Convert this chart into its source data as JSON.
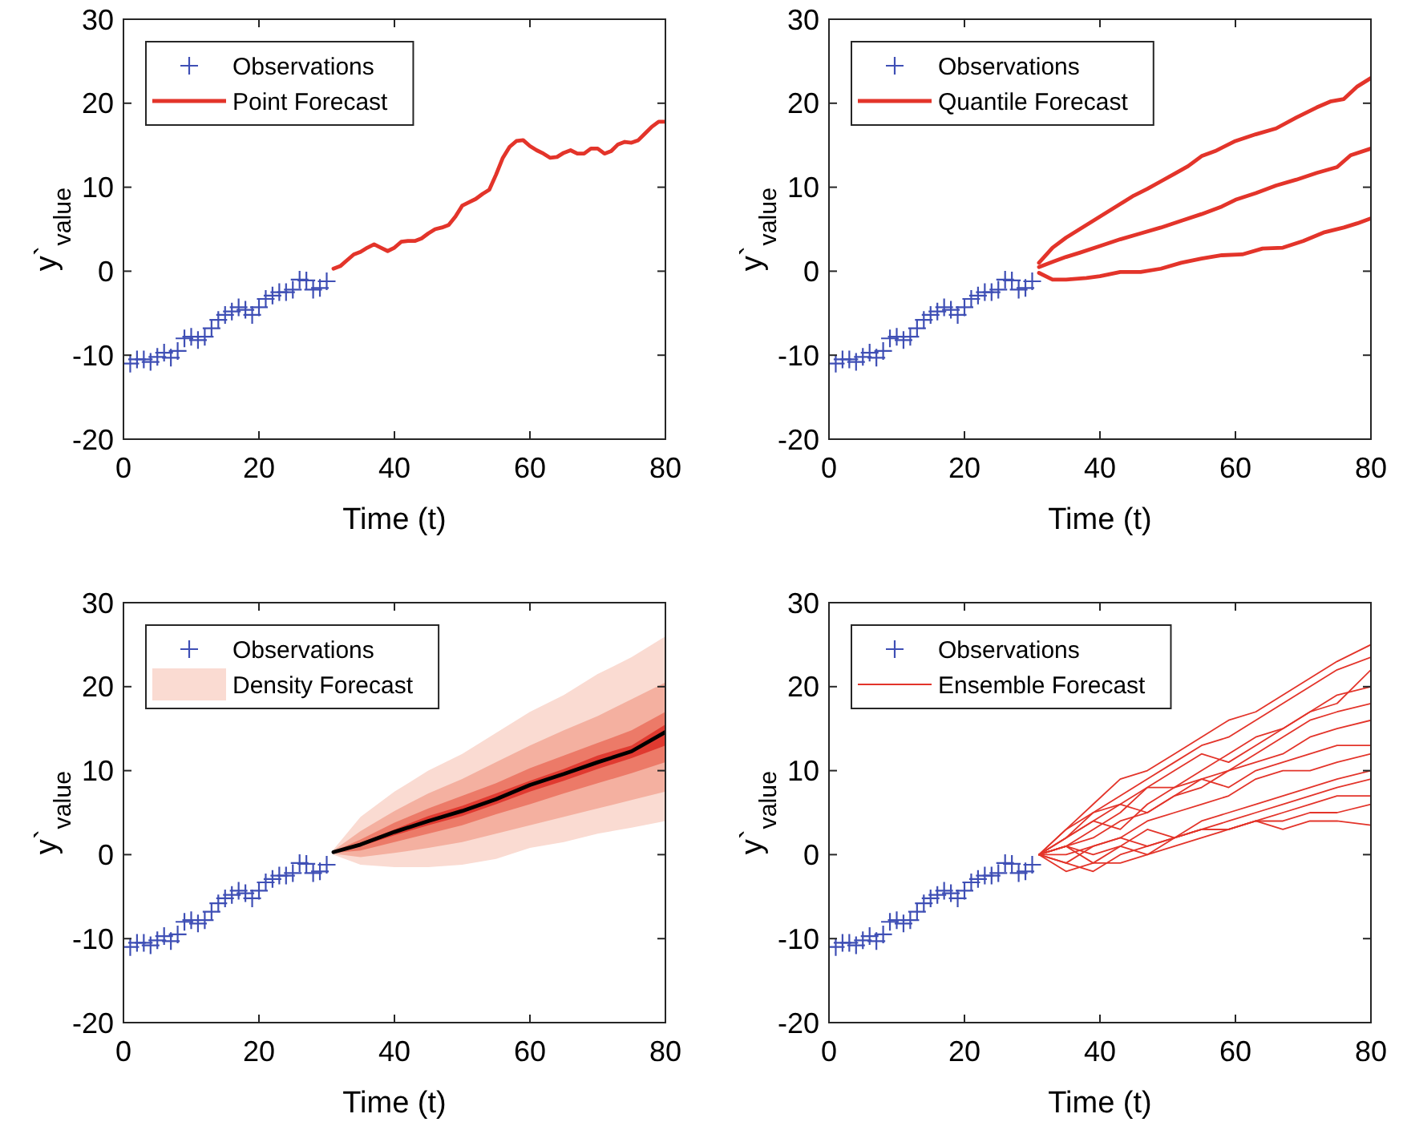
{
  "chart_data": [
    {
      "type": "scatter",
      "xlabel": "Time (t)",
      "ylabel": "y`$_{value}$",
      "xlim": [
        0,
        80
      ],
      "ylim": [
        -20,
        30
      ],
      "xticks": [
        0,
        20,
        40,
        60,
        80
      ],
      "yticks": [
        -20,
        -10,
        0,
        10,
        20,
        30
      ],
      "legend": "top left",
      "grid": false,
      "series": [
        {
          "name": "Observations",
          "marker": "cross",
          "color": "#3f4fb5",
          "x": [
            1,
            2,
            3,
            4,
            5,
            6,
            7,
            8,
            9,
            10,
            11,
            12,
            13,
            14,
            15,
            16,
            17,
            18,
            19,
            20,
            21,
            22,
            23,
            24,
            25,
            26,
            27,
            28,
            29,
            30
          ],
          "values": [
            -11,
            -10.5,
            -10.5,
            -10.8,
            -10.2,
            -9.7,
            -10.3,
            -9.5,
            -8,
            -7.8,
            -8.2,
            -7.8,
            -6.8,
            -5.8,
            -5.2,
            -4.8,
            -4.3,
            -4.6,
            -5.2,
            -4.3,
            -3.3,
            -2.9,
            -2.5,
            -2.5,
            -2.2,
            -1,
            -1.1,
            -2.2,
            -2,
            -1.2
          ]
        },
        {
          "name": "Point Forecast",
          "type": "line",
          "color": "#e3342a",
          "x": [
            31,
            32,
            33,
            34,
            35,
            36,
            37,
            38,
            39,
            40,
            41,
            42,
            43,
            44,
            45,
            46,
            47,
            48,
            49,
            50,
            51,
            52,
            53,
            54,
            55,
            56,
            57,
            58,
            59,
            60,
            61,
            62,
            63,
            64,
            65,
            66,
            67,
            68,
            69,
            70,
            71,
            72,
            73,
            74,
            75,
            76,
            77,
            78,
            79,
            80
          ],
          "values": [
            0.3,
            0.6,
            1.3,
            2.0,
            2.3,
            2.8,
            3.2,
            2.8,
            2.4,
            2.8,
            3.5,
            3.6,
            3.6,
            3.9,
            4.5,
            5.0,
            5.2,
            5.5,
            6.5,
            7.8,
            8.2,
            8.6,
            9.2,
            9.7,
            11.5,
            13.5,
            14.8,
            15.5,
            15.6,
            14.9,
            14.4,
            14.0,
            13.5,
            13.6,
            14.1,
            14.4,
            14.0,
            14.0,
            14.6,
            14.6,
            14.0,
            14.3,
            15.1,
            15.4,
            15.3,
            15.6,
            16.4,
            17.2,
            17.8,
            17.8
          ]
        }
      ]
    },
    {
      "type": "scatter",
      "xlabel": "Time (t)",
      "ylabel": "y`$_{value}$",
      "xlim": [
        0,
        80
      ],
      "ylim": [
        -20,
        30
      ],
      "xticks": [
        0,
        20,
        40,
        60,
        80
      ],
      "yticks": [
        -20,
        -10,
        0,
        10,
        20,
        30
      ],
      "legend": "top left",
      "grid": false,
      "series": [
        {
          "name": "Observations",
          "marker": "cross",
          "color": "#3f4fb5",
          "x": [
            1,
            2,
            3,
            4,
            5,
            6,
            7,
            8,
            9,
            10,
            11,
            12,
            13,
            14,
            15,
            16,
            17,
            18,
            19,
            20,
            21,
            22,
            23,
            24,
            25,
            26,
            27,
            28,
            29,
            30
          ],
          "values": [
            -11,
            -10.5,
            -10.5,
            -10.8,
            -10.2,
            -9.7,
            -10.3,
            -9.5,
            -8,
            -7.8,
            -8.2,
            -7.8,
            -6.8,
            -5.8,
            -5.2,
            -4.8,
            -4.3,
            -4.6,
            -5.2,
            -4.3,
            -3.3,
            -2.9,
            -2.5,
            -2.5,
            -2.2,
            -1,
            -1.1,
            -2.2,
            -2,
            -1.2
          ]
        },
        {
          "name": "Quantile Forecast",
          "type": "line",
          "color": "#e3342a",
          "x": [
            31,
            33,
            35,
            37,
            39,
            41,
            43,
            45,
            47,
            49,
            51,
            53,
            55,
            57,
            60,
            63,
            66,
            69,
            72,
            74,
            76,
            78,
            80
          ],
          "values": [
            1,
            2.8,
            4,
            5,
            6,
            7,
            8,
            9,
            9.8,
            10.7,
            11.6,
            12.5,
            13.7,
            14.3,
            15.5,
            16.3,
            17,
            18.3,
            19.5,
            20.2,
            20.5,
            22,
            23
          ]
        },
        {
          "type": "line",
          "color": "#e3342a",
          "x": [
            31,
            33,
            35,
            37,
            40,
            43,
            46,
            49,
            52,
            55,
            58,
            60,
            63,
            66,
            69,
            72,
            75,
            77,
            80
          ],
          "values": [
            0.5,
            1.1,
            1.7,
            2.2,
            3,
            3.8,
            4.5,
            5.2,
            6,
            6.8,
            7.7,
            8.5,
            9.3,
            10.2,
            10.9,
            11.7,
            12.4,
            13.8,
            14.6
          ]
        },
        {
          "type": "line",
          "color": "#e3342a",
          "x": [
            31,
            33,
            35,
            38,
            40,
            43,
            46,
            49,
            52,
            55,
            58,
            61,
            64,
            67,
            70,
            73,
            76,
            78,
            80
          ],
          "values": [
            -0.2,
            -1,
            -1,
            -0.8,
            -0.6,
            -0.1,
            -0.1,
            0.3,
            1,
            1.5,
            1.9,
            2,
            2.7,
            2.8,
            3.6,
            4.6,
            5.2,
            5.7,
            6.3
          ]
        }
      ]
    },
    {
      "type": "scatter",
      "xlabel": "Time (t)",
      "ylabel": "y`$_{value}$",
      "xlim": [
        0,
        80
      ],
      "ylim": [
        -20,
        30
      ],
      "xticks": [
        0,
        20,
        40,
        60,
        80
      ],
      "yticks": [
        -20,
        -10,
        0,
        10,
        20,
        30
      ],
      "legend": "top left",
      "grid": false,
      "series": [
        {
          "name": "Observations",
          "marker": "cross",
          "color": "#3f4fb5",
          "x": [
            1,
            2,
            3,
            4,
            5,
            6,
            7,
            8,
            9,
            10,
            11,
            12,
            13,
            14,
            15,
            16,
            17,
            18,
            19,
            20,
            21,
            22,
            23,
            24,
            25,
            26,
            27,
            28,
            29,
            30
          ],
          "values": [
            -11,
            -10.5,
            -10.5,
            -10.8,
            -10.2,
            -9.7,
            -10.3,
            -9.5,
            -8,
            -7.8,
            -8.2,
            -7.8,
            -6.8,
            -5.8,
            -5.2,
            -4.8,
            -4.3,
            -4.6,
            -5.2,
            -4.3,
            -3.3,
            -2.9,
            -2.5,
            -2.5,
            -2.2,
            -1,
            -1.1,
            -2.2,
            -2,
            -1.2
          ]
        },
        {
          "name": "Density Forecast",
          "type": "line",
          "color": "#fadbd2",
          "x": [
            31,
            35,
            40,
            45,
            50,
            55,
            60,
            65,
            70,
            75,
            80
          ],
          "values": [
            null,
            null,
            null,
            null,
            null,
            null,
            null,
            null,
            null,
            null,
            null
          ],
          "lower": [
            0,
            -1.2,
            -1.5,
            -1.5,
            -1.2,
            -0.5,
            0.8,
            1.5,
            2.5,
            3.2,
            4
          ],
          "upper": [
            0.6,
            4.5,
            7.5,
            10,
            12,
            14.5,
            17,
            19,
            21.5,
            23.5,
            26
          ]
        },
        {
          "type": "line",
          "color": "#f4b0a0",
          "x": [
            31,
            35,
            40,
            45,
            50,
            55,
            60,
            65,
            70,
            75,
            80
          ],
          "values": [
            null,
            null,
            null,
            null,
            null,
            null,
            null,
            null,
            null,
            null,
            null
          ],
          "lower": [
            0.1,
            -0.3,
            0.2,
            0.8,
            1.5,
            2.5,
            3.5,
            4.5,
            5.5,
            6.5,
            7.5
          ],
          "upper": [
            0.5,
            2.8,
            5.2,
            7.3,
            9,
            11,
            13,
            14.8,
            16.5,
            18.5,
            20.5
          ]
        },
        {
          "type": "line",
          "color": "#ec7a68",
          "x": [
            31,
            35,
            40,
            45,
            50,
            55,
            60,
            65,
            70,
            75,
            80
          ],
          "values": [
            null,
            null,
            null,
            null,
            null,
            null,
            null,
            null,
            null,
            null,
            null
          ],
          "lower": [
            0.2,
            0.5,
            1.5,
            2.5,
            3.5,
            4.8,
            6,
            7.3,
            8.5,
            9.7,
            11
          ],
          "upper": [
            0.4,
            1.8,
            3.8,
            5.5,
            7,
            8.5,
            10.3,
            11.8,
            13.3,
            14.8,
            17
          ]
        },
        {
          "type": "line",
          "color": "#e03a30",
          "x": [
            31,
            35,
            40,
            45,
            50,
            55,
            60,
            65,
            70,
            75,
            80
          ],
          "values": [
            null,
            null,
            null,
            null,
            null,
            null,
            null,
            null,
            null,
            null,
            null
          ],
          "lower": [
            0.25,
            1,
            2.3,
            3.5,
            4.6,
            6,
            7.5,
            8.8,
            10.2,
            11.5,
            13
          ],
          "upper": [
            0.35,
            1.4,
            3,
            4.6,
            5.8,
            7.3,
            8.8,
            10.2,
            11.8,
            13,
            15.5
          ]
        },
        {
          "type": "line",
          "color": "#000000",
          "x": [
            31,
            35,
            40,
            45,
            50,
            55,
            60,
            65,
            70,
            75,
            80
          ],
          "values": [
            0.3,
            1.2,
            2.7,
            4,
            5.2,
            6.6,
            8.3,
            9.6,
            11,
            12.3,
            14.6
          ]
        }
      ]
    },
    {
      "type": "scatter",
      "xlabel": "Time (t)",
      "ylabel": "y`$_{value}$",
      "xlim": [
        0,
        80
      ],
      "ylim": [
        -20,
        30
      ],
      "xticks": [
        0,
        20,
        40,
        60,
        80
      ],
      "yticks": [
        -20,
        -10,
        0,
        10,
        20,
        30
      ],
      "legend": "top left",
      "grid": false,
      "series": [
        {
          "name": "Observations",
          "marker": "cross",
          "color": "#3f4fb5",
          "x": [
            1,
            2,
            3,
            4,
            5,
            6,
            7,
            8,
            9,
            10,
            11,
            12,
            13,
            14,
            15,
            16,
            17,
            18,
            19,
            20,
            21,
            22,
            23,
            24,
            25,
            26,
            27,
            28,
            29,
            30
          ],
          "values": [
            -11,
            -10.5,
            -10.5,
            -10.8,
            -10.2,
            -9.7,
            -10.3,
            -9.5,
            -8,
            -7.8,
            -8.2,
            -7.8,
            -6.8,
            -5.8,
            -5.2,
            -4.8,
            -4.3,
            -4.6,
            -5.2,
            -4.3,
            -3.3,
            -2.9,
            -2.5,
            -2.5,
            -2.2,
            -1,
            -1.1,
            -2.2,
            -2,
            -1.2
          ]
        },
        {
          "name": "Ensemble Forecast",
          "type": "line",
          "color": "#e3342a",
          "x": [
            31,
            35,
            39,
            43,
            47,
            51,
            55,
            59,
            63,
            67,
            71,
            75,
            80
          ],
          "values": [
            0,
            3,
            6,
            9,
            10,
            12,
            14,
            16,
            17,
            19,
            21,
            23,
            25
          ]
        },
        {
          "type": "line",
          "color": "#e3342a",
          "x": [
            31,
            35,
            39,
            43,
            47,
            51,
            55,
            59,
            63,
            67,
            71,
            75,
            80
          ],
          "values": [
            0,
            2,
            5,
            7,
            9,
            11,
            13,
            14,
            16,
            18,
            20,
            22,
            23.5
          ]
        },
        {
          "type": "line",
          "color": "#e3342a",
          "x": [
            31,
            35,
            39,
            43,
            47,
            51,
            55,
            59,
            63,
            67,
            71,
            75,
            80
          ],
          "values": [
            0,
            1,
            3,
            5,
            8,
            8,
            10,
            12,
            14,
            15,
            17,
            19,
            20
          ]
        },
        {
          "type": "line",
          "color": "#e3342a",
          "x": [
            31,
            35,
            39,
            43,
            47,
            51,
            55,
            59,
            63,
            67,
            71,
            75,
            80
          ],
          "values": [
            0,
            2,
            4,
            3,
            6,
            8,
            9,
            10,
            12,
            14,
            16,
            17,
            18
          ]
        },
        {
          "type": "line",
          "color": "#e3342a",
          "x": [
            31,
            35,
            39,
            43,
            47,
            51,
            55,
            59,
            63,
            67,
            71,
            75,
            80
          ],
          "values": [
            0,
            1,
            2,
            4,
            5,
            7,
            8,
            10,
            11,
            12,
            14,
            15,
            16
          ]
        },
        {
          "type": "line",
          "color": "#e3342a",
          "x": [
            31,
            35,
            39,
            43,
            47,
            51,
            55,
            59,
            63,
            67,
            71,
            75,
            80
          ],
          "values": [
            0,
            3,
            5,
            6,
            5,
            7,
            9,
            8,
            10,
            11,
            12,
            13,
            13
          ]
        },
        {
          "type": "line",
          "color": "#e3342a",
          "x": [
            31,
            35,
            39,
            43,
            47,
            51,
            55,
            59,
            63,
            67,
            71,
            75,
            80
          ],
          "values": [
            0,
            -1,
            1,
            2,
            4,
            5,
            6,
            7,
            9,
            10,
            10,
            11,
            12
          ]
        },
        {
          "type": "line",
          "color": "#e3342a",
          "x": [
            31,
            35,
            39,
            43,
            47,
            51,
            55,
            59,
            63,
            67,
            71,
            75,
            80
          ],
          "values": [
            0,
            1,
            -1,
            1,
            3,
            2,
            4,
            5,
            6,
            7,
            8,
            9,
            10
          ]
        },
        {
          "type": "line",
          "color": "#e3342a",
          "x": [
            31,
            35,
            39,
            43,
            47,
            51,
            55,
            59,
            63,
            67,
            71,
            75,
            80
          ],
          "values": [
            0,
            -1,
            -2,
            0,
            1,
            2,
            3,
            4,
            5,
            6,
            7,
            8,
            9
          ]
        },
        {
          "type": "line",
          "color": "#e3342a",
          "x": [
            31,
            35,
            39,
            43,
            47,
            51,
            55,
            59,
            63,
            67,
            71,
            75,
            80
          ],
          "values": [
            0,
            1,
            0,
            1,
            0,
            2,
            3,
            3,
            4,
            5,
            6,
            7,
            7
          ]
        },
        {
          "type": "line",
          "color": "#e3342a",
          "x": [
            31,
            35,
            39,
            43,
            47,
            51,
            55,
            59,
            63,
            67,
            71,
            75,
            80
          ],
          "values": [
            0,
            -2,
            -1,
            -1,
            0,
            1,
            2,
            3,
            4,
            4,
            5,
            5,
            6
          ]
        },
        {
          "type": "line",
          "color": "#e3342a",
          "x": [
            31,
            35,
            39,
            43,
            47,
            51,
            55,
            59,
            63,
            67,
            71,
            75,
            80
          ],
          "values": [
            0,
            0,
            1,
            2,
            1,
            2,
            3,
            3,
            4,
            3,
            4,
            4,
            3.5
          ]
        },
        {
          "type": "line",
          "color": "#e3342a",
          "x": [
            31,
            35,
            39,
            43,
            47,
            51,
            55,
            59,
            63,
            67,
            71,
            75,
            80
          ],
          "values": [
            0,
            2,
            4,
            6,
            8,
            10,
            12,
            11,
            13,
            15,
            17,
            18,
            22
          ]
        }
      ]
    }
  ]
}
